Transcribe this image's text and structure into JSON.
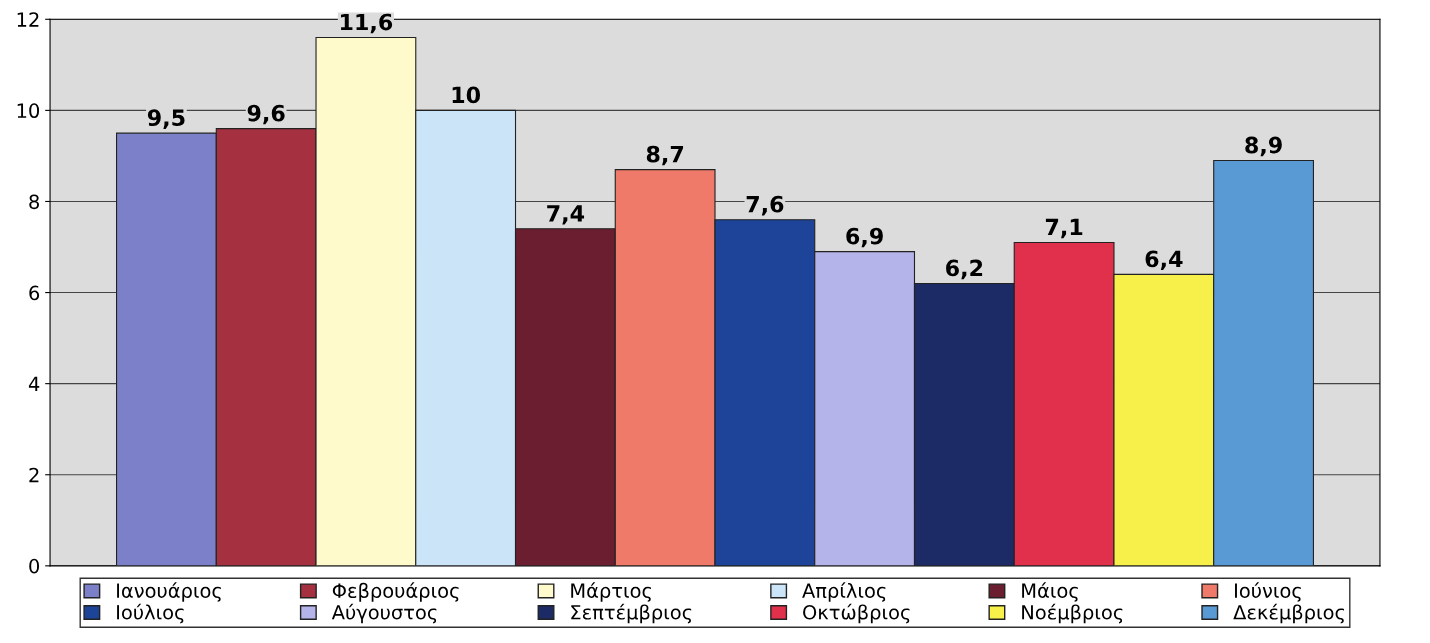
{
  "chart_data": {
    "type": "bar",
    "categories": [
      null
    ],
    "series": [
      {
        "name": "Ιανουάριος",
        "color": "#7b80c8",
        "values": [
          9.5
        ],
        "value_labels": [
          "9,5"
        ]
      },
      {
        "name": "Φεβρουάριος",
        "color": "#a5303f",
        "values": [
          9.6
        ],
        "value_labels": [
          "9,6"
        ]
      },
      {
        "name": "Μάρτιος",
        "color": "#fffacc",
        "values": [
          11.6
        ],
        "value_labels": [
          "11,6"
        ]
      },
      {
        "name": "Απρίλιος",
        "color": "#cce4f8",
        "values": [
          10
        ],
        "value_labels": [
          "10"
        ]
      },
      {
        "name": "Μάιος",
        "color": "#6b1e30",
        "values": [
          7.4
        ],
        "value_labels": [
          "7,4"
        ]
      },
      {
        "name": "Ιούνιος",
        "color": "#f07a6a",
        "values": [
          8.7
        ],
        "value_labels": [
          "8,7"
        ]
      },
      {
        "name": "Ιούλιος",
        "color": "#1e4499",
        "values": [
          7.6
        ],
        "value_labels": [
          "7,6"
        ]
      },
      {
        "name": "Αύγουστος",
        "color": "#b4b4ea",
        "values": [
          6.9
        ],
        "value_labels": [
          "6,9"
        ]
      },
      {
        "name": "Σεπτέμβριος",
        "color": "#1c2a66",
        "values": [
          6.2
        ],
        "value_labels": [
          "6,2"
        ]
      },
      {
        "name": "Οκτώβριος",
        "color": "#e0304c",
        "values": [
          7.1
        ],
        "value_labels": [
          "7,1"
        ]
      },
      {
        "name": "Νοέμβριος",
        "color": "#f8f04a",
        "values": [
          6.4
        ],
        "value_labels": [
          "6,4"
        ]
      },
      {
        "name": "Δεκέμβριος",
        "color": "#5a9ad4",
        "values": [
          8.9
        ],
        "value_labels": [
          "8,9"
        ]
      }
    ],
    "ylim": [
      0,
      12
    ],
    "yticks": [
      0,
      2,
      4,
      6,
      8,
      10,
      12
    ],
    "grid": "y",
    "legend": "bottom"
  }
}
